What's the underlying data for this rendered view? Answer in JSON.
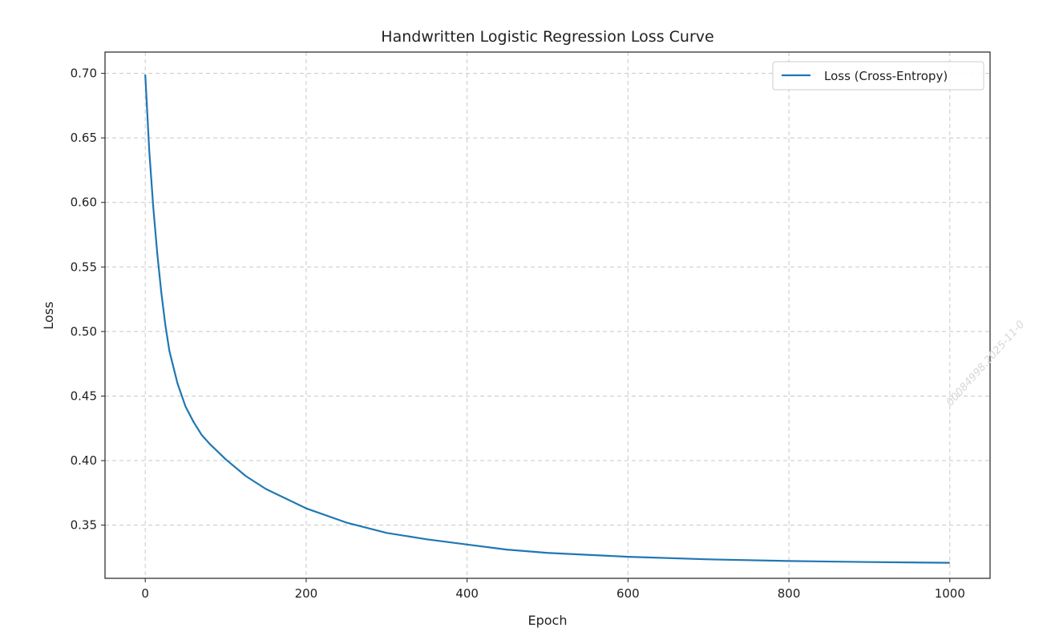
{
  "chart_data": {
    "type": "line",
    "title": "Handwritten Logistic Regression Loss Curve",
    "xlabel": "Epoch",
    "ylabel": "Loss",
    "xlim": [
      -50,
      1050
    ],
    "ylim": [
      0.3088,
      0.7165
    ],
    "xticks": [
      0,
      200,
      400,
      600,
      800,
      1000
    ],
    "yticks": [
      0.35,
      0.4,
      0.45,
      0.5,
      0.55,
      0.6,
      0.65,
      0.7
    ],
    "grid": true,
    "legend_position": "top-right",
    "series": [
      {
        "name": "Loss (Cross-Entropy)",
        "color": "#1f77b4",
        "x": [
          0,
          5,
          10,
          15,
          20,
          25,
          30,
          40,
          50,
          60,
          70,
          80,
          100,
          125,
          150,
          200,
          250,
          300,
          350,
          400,
          450,
          500,
          600,
          700,
          800,
          900,
          1000
        ],
        "y": [
          0.699,
          0.64,
          0.596,
          0.56,
          0.53,
          0.505,
          0.485,
          0.46,
          0.442,
          0.43,
          0.42,
          0.413,
          0.401,
          0.388,
          0.378,
          0.363,
          0.352,
          0.344,
          0.339,
          0.335,
          0.331,
          0.3285,
          0.3255,
          0.3235,
          0.3222,
          0.3214,
          0.3208
        ]
      }
    ]
  },
  "watermark": "00084998.2025-11-0"
}
